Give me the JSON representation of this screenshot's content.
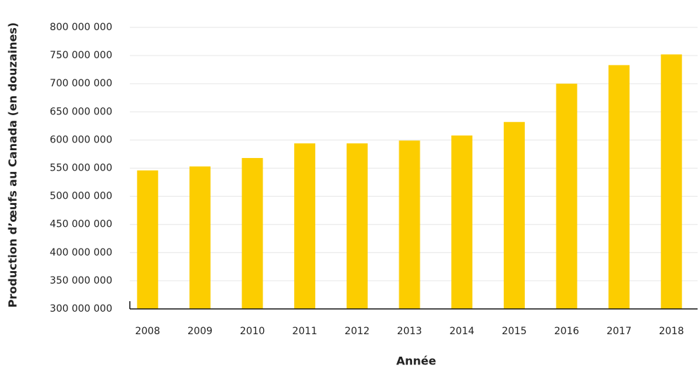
{
  "chart_data": {
    "type": "bar",
    "x_label": "Année",
    "y_label": "Production d’œufs au Canada (en douzaines)",
    "categories": [
      "2008",
      "2009",
      "2010",
      "2011",
      "2012",
      "2013",
      "2014",
      "2015",
      "2016",
      "2017",
      "2018"
    ],
    "values": [
      546000000,
      553000000,
      568000000,
      594000000,
      594000000,
      599000000,
      608000000,
      632000000,
      700000000,
      733000000,
      752000000
    ],
    "color": "#fccd00",
    "ylim": [
      300000000,
      800000000
    ],
    "yticks": [
      {
        "value": 300000000,
        "label": "300 000 000"
      },
      {
        "value": 350000000,
        "label": "350 000 000"
      },
      {
        "value": 400000000,
        "label": "400 000 000"
      },
      {
        "value": 450000000,
        "label": "450 000 000"
      },
      {
        "value": 500000000,
        "label": "500 000 000"
      },
      {
        "value": 550000000,
        "label": "550 000 000"
      },
      {
        "value": 600000000,
        "label": "600 000 000"
      },
      {
        "value": 650000000,
        "label": "650 000 000"
      },
      {
        "value": 700000000,
        "label": "700 000 000"
      },
      {
        "value": 750000000,
        "label": "750 000 000"
      },
      {
        "value": 800000000,
        "label": "800 000 000"
      }
    ],
    "grid": true
  }
}
